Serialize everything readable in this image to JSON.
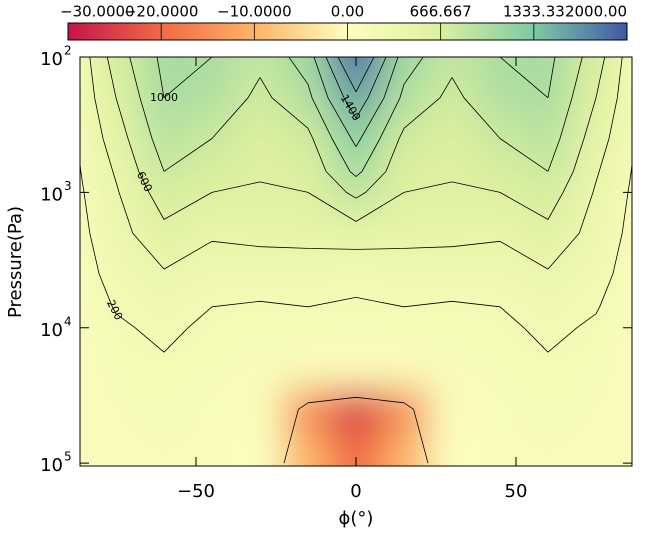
{
  "chart_data": {
    "type": "contour",
    "xlabel": "ϕ(°)",
    "ylabel": "Pressure(Pa)",
    "x": [
      -90,
      -75,
      -60,
      -45,
      -30,
      -15,
      0,
      15,
      30,
      45,
      60,
      75,
      90
    ],
    "y": [
      100,
      200,
      400,
      700,
      1000,
      2000,
      4000,
      7000,
      10000,
      20000,
      40000,
      100000
    ],
    "z": [
      [
        150,
        700,
        1050,
        1000,
        850,
        1100,
        1900,
        1100,
        850,
        1000,
        1050,
        700,
        150
      ],
      [
        150,
        600,
        1000,
        950,
        750,
        950,
        1550,
        950,
        750,
        950,
        1000,
        600,
        150
      ],
      [
        130,
        500,
        900,
        800,
        650,
        750,
        1250,
        750,
        650,
        800,
        900,
        500,
        130
      ],
      [
        120,
        420,
        800,
        700,
        620,
        650,
        1050,
        650,
        620,
        700,
        800,
        420,
        120
      ],
      [
        110,
        380,
        700,
        600,
        580,
        600,
        850,
        600,
        580,
        600,
        700,
        380,
        110
      ],
      [
        100,
        320,
        550,
        430,
        450,
        460,
        500,
        460,
        450,
        430,
        550,
        320,
        100
      ],
      [
        90,
        260,
        380,
        280,
        300,
        300,
        250,
        300,
        300,
        280,
        380,
        260,
        90
      ],
      [
        80,
        210,
        280,
        200,
        180,
        200,
        180,
        200,
        180,
        200,
        280,
        210,
        80
      ],
      [
        70,
        180,
        230,
        170,
        160,
        160,
        150,
        160,
        160,
        170,
        230,
        180,
        70
      ],
      [
        60,
        150,
        180,
        140,
        120,
        80,
        60,
        80,
        120,
        140,
        180,
        150,
        60
      ],
      [
        50,
        120,
        150,
        110,
        60,
        -15,
        -25,
        -15,
        60,
        110,
        150,
        120,
        50
      ],
      [
        40,
        100,
        120,
        90,
        10,
        -10,
        -20,
        -10,
        10,
        90,
        120,
        100,
        40
      ]
    ],
    "xlim": [
      -86.25,
      86.25
    ],
    "ylim": [
      100,
      105000
    ],
    "ylog": true,
    "yinvert": true,
    "xticks": [
      {
        "value": -50,
        "label": "−50"
      },
      0,
      50
    ],
    "yticks": [
      {
        "value": 100,
        "label": "10",
        "exponent": "2"
      },
      {
        "value": 1000,
        "label": "10",
        "exponent": "3"
      },
      {
        "value": 10000,
        "label": "10",
        "exponent": "4"
      },
      {
        "value": 100000,
        "label": "10",
        "exponent": "5"
      }
    ],
    "contour_color": "#000000",
    "contour_levels": [
      {
        "value": 0,
        "labeled": false
      },
      {
        "value": 200,
        "labeled": true
      },
      {
        "value": 400,
        "labeled": false
      },
      {
        "value": 600,
        "labeled": true
      },
      {
        "value": 800,
        "labeled": false
      },
      {
        "value": 1000,
        "labeled": true
      },
      {
        "value": 1200,
        "labeled": false
      },
      {
        "value": 1400,
        "labeled": true
      },
      {
        "value": 1600,
        "labeled": false
      }
    ],
    "colorbar": {
      "ticks": [
        {
          "value": -30,
          "label": "−30.0000"
        },
        {
          "value": -20,
          "label": "−20.0000"
        },
        {
          "value": -10,
          "label": "−10.0000"
        },
        {
          "value": 0,
          "label": "0.00"
        },
        {
          "value": 666.667,
          "label": "666.667"
        },
        {
          "value": 1333.33,
          "label": "1333.33"
        },
        {
          "value": 2000,
          "label": "2000.00"
        }
      ],
      "colors": [
        "#c4154c",
        "#f06a44",
        "#fcb467",
        "#fefebf",
        "#dcf09e",
        "#7ccba4",
        "#4258a8"
      ]
    }
  }
}
